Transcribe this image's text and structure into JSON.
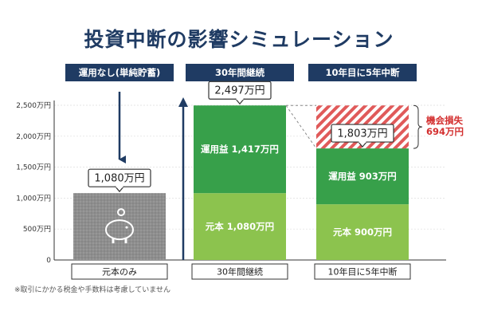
{
  "title": "投資中断の影響シミュレーション",
  "note": "※取引にかかる税金や手数料は考慮していません",
  "chart_data": {
    "type": "bar",
    "stacked": true,
    "title": "投資中断の影響シミュレーション",
    "ylim": [
      0,
      2500
    ],
    "y_ticks": [
      0,
      500,
      1000,
      1500,
      2000,
      2500
    ],
    "y_tick_labels": [
      "0",
      "500万円",
      "1,000万円",
      "1,500万円",
      "2,000万円",
      "2,500万円"
    ],
    "grid": true,
    "columns": [
      {
        "header": "運用なし(単純貯蓄)",
        "bottom_label": "元本のみ",
        "total_callout": "1,080万円",
        "segments": [
          {
            "value": 1080,
            "label": "",
            "color": "#8e8e8e",
            "pattern": "dots",
            "icon": "piggy-bank-icon"
          }
        ]
      },
      {
        "header": "30年間継続",
        "bottom_label": "30年間継続",
        "total_callout": "2,497万円",
        "segments": [
          {
            "value": 1080,
            "label": "元本 1,080万円",
            "color": "#8cc34e"
          },
          {
            "value": 1417,
            "label": "運用益 1,417万円",
            "color": "#37a04a"
          }
        ]
      },
      {
        "header": "10年目に5年中断",
        "bottom_label": "10年目に5年中断",
        "total_callout": "1,803万円",
        "segments": [
          {
            "value": 900,
            "label": "元本 900万円",
            "color": "#8cc34e"
          },
          {
            "value": 903,
            "label": "運用益 903万円",
            "color": "#37a04a"
          },
          {
            "value": 694,
            "label": "",
            "color": "#e05a5a",
            "pattern": "hatch"
          }
        ],
        "loss_label_1": "機会損失",
        "loss_label_2": "694万円"
      }
    ],
    "colors": {
      "header_bg": "#1f3b63",
      "axis": "#333333",
      "grid": "#dddddd",
      "loss_text": "#d32f2f"
    }
  }
}
